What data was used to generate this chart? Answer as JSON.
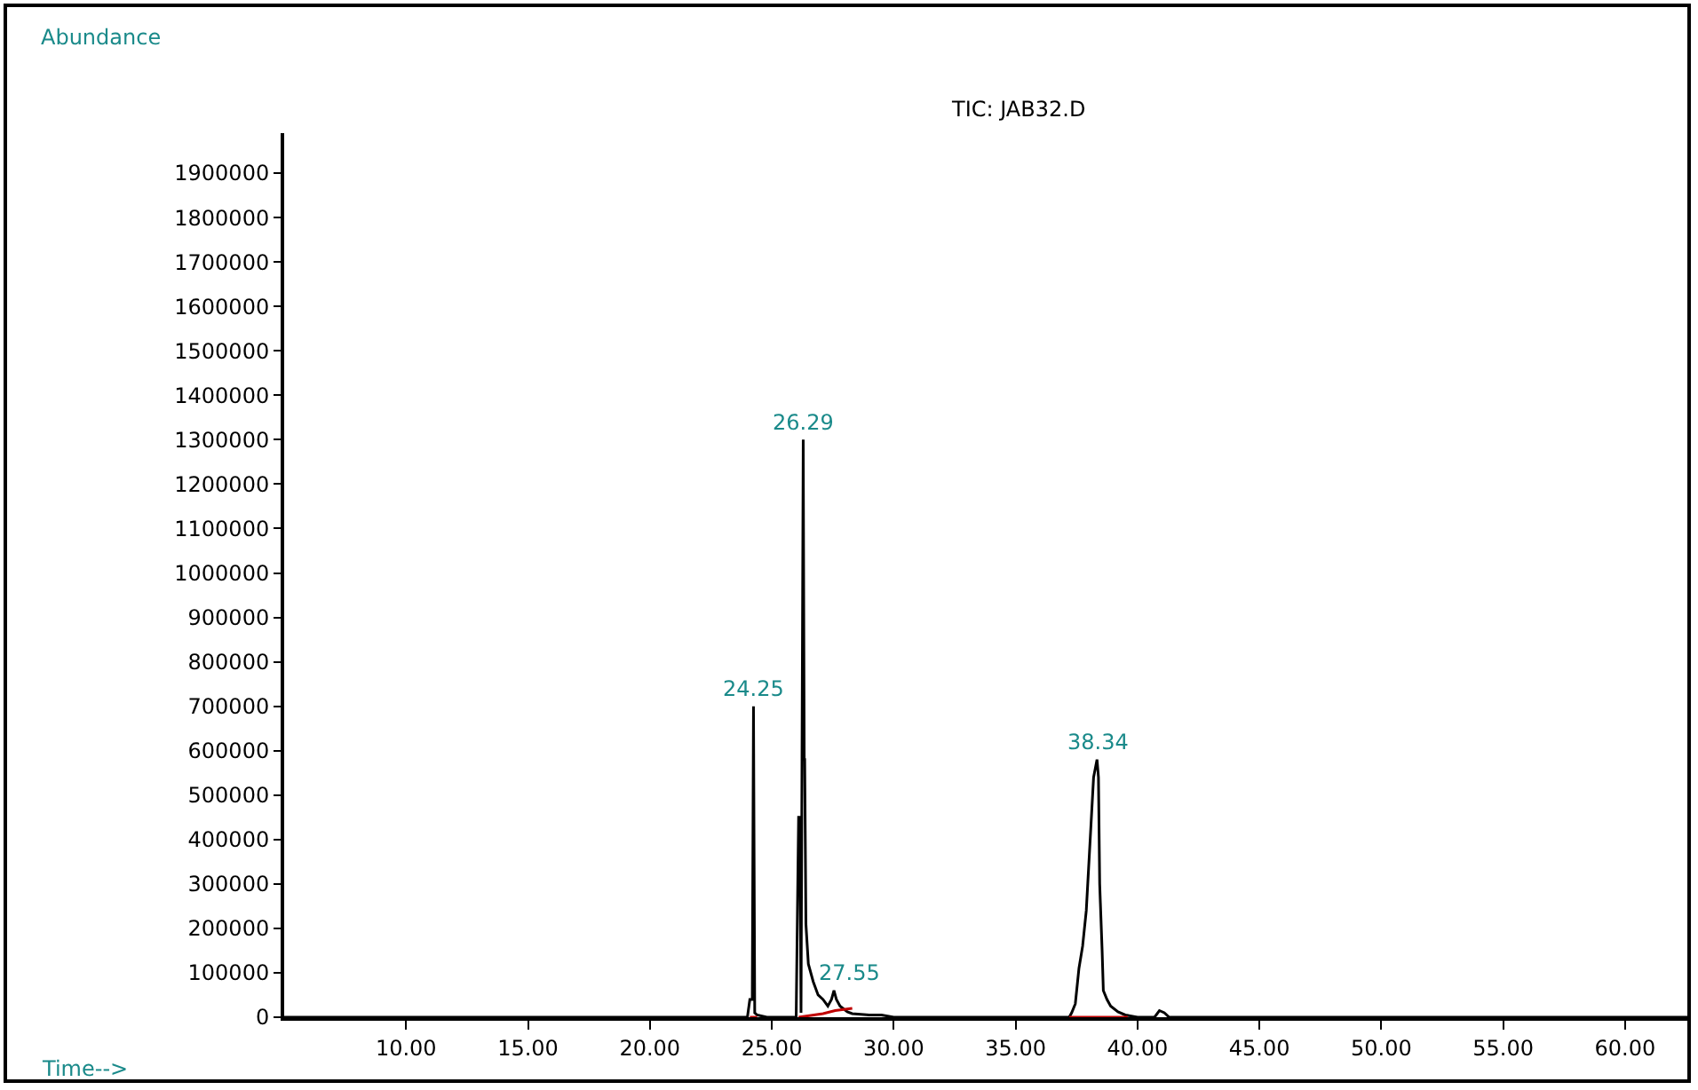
{
  "chart_data": {
    "type": "line",
    "title": "TIC: JAB32.D",
    "xlabel": "Time-->",
    "ylabel": "Abundance",
    "xlim": [
      5.0,
      62.7
    ],
    "ylim": [
      0,
      1990000
    ],
    "xticks": [
      {
        "value": 10,
        "label": "10.00"
      },
      {
        "value": 15,
        "label": "15.00"
      },
      {
        "value": 20,
        "label": "20.00"
      },
      {
        "value": 25,
        "label": "25.00"
      },
      {
        "value": 30,
        "label": "30.00"
      },
      {
        "value": 35,
        "label": "35.00"
      },
      {
        "value": 40,
        "label": "40.00"
      },
      {
        "value": 45,
        "label": "45.00"
      },
      {
        "value": 50,
        "label": "50.00"
      },
      {
        "value": 55,
        "label": "55.00"
      },
      {
        "value": 60,
        "label": "60.00"
      }
    ],
    "yticks": [
      0,
      100000,
      200000,
      300000,
      400000,
      500000,
      600000,
      700000,
      800000,
      900000,
      1000000,
      1100000,
      1200000,
      1300000,
      1400000,
      1500000,
      1600000,
      1700000,
      1800000,
      1900000
    ],
    "grid": false,
    "marker": "none",
    "line_style": "solid",
    "series": [
      {
        "color": "#000000",
        "x": [
          5.0,
          10.0,
          15.0,
          20.0,
          24.0,
          24.1,
          24.2,
          24.25,
          24.3,
          24.4,
          24.8,
          26.0,
          26.1,
          26.15,
          26.2,
          26.29,
          26.33,
          26.35,
          26.4,
          26.5,
          26.7,
          26.9,
          27.1,
          27.3,
          27.45,
          27.55,
          27.65,
          27.8,
          28.1,
          28.3,
          29.0,
          29.5,
          30.0,
          35.0,
          37.2,
          37.3,
          37.45,
          37.6,
          37.75,
          37.9,
          38.05,
          38.2,
          38.34,
          38.4,
          38.45,
          38.55,
          38.6,
          38.75,
          38.9,
          39.2,
          39.5,
          40.0,
          40.7,
          40.9,
          41.1,
          41.3,
          45.0,
          50.0,
          55.0,
          60.0,
          62.7
        ],
        "values": [
          0,
          0,
          0,
          0,
          0,
          40000,
          40000,
          700000,
          10000,
          5000,
          0,
          0,
          450000,
          450000,
          10000,
          1300000,
          580000,
          580000,
          210000,
          120000,
          80000,
          50000,
          40000,
          25000,
          40000,
          60000,
          40000,
          25000,
          12000,
          8000,
          5000,
          5000,
          0,
          0,
          0,
          10000,
          30000,
          110000,
          160000,
          240000,
          390000,
          540000,
          580000,
          540000,
          300000,
          150000,
          60000,
          40000,
          25000,
          12000,
          5000,
          0,
          0,
          15000,
          10000,
          0,
          0,
          0,
          0,
          0,
          0
        ]
      },
      {
        "color": "#c00000",
        "x": [
          24.1,
          24.4,
          null,
          26.1,
          27.1,
          27.6,
          28.3,
          null,
          37.2,
          39.6
        ],
        "values": [
          0,
          0,
          null,
          0,
          8000,
          15000,
          20000,
          null,
          0,
          0
        ]
      }
    ],
    "annotations": [
      {
        "text": "24.25",
        "x": 24.25,
        "y": 700000
      },
      {
        "text": "26.29",
        "x": 26.29,
        "y": 1300000
      },
      {
        "text": "27.55",
        "x": 27.55,
        "y": 60000
      },
      {
        "text": "38.34",
        "x": 38.34,
        "y": 580000
      }
    ]
  }
}
